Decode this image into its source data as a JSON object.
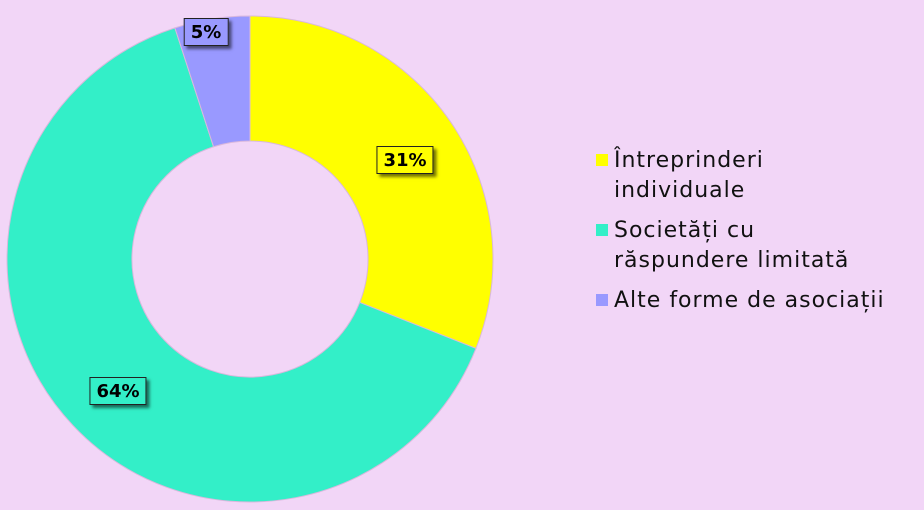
{
  "background_color": "#f2d6f7",
  "chart_data": {
    "type": "pie",
    "donut": true,
    "title": "",
    "legend_position": "right",
    "slices": [
      {
        "label": "Întreprinderi\nindividuale",
        "value": 31,
        "display": "31%",
        "color": "#ffff00"
      },
      {
        "label": "Societăți cu\nrăspundere limitată",
        "value": 64,
        "display": "64%",
        "color": "#33efc8"
      },
      {
        "label": "Alte forme de asociații",
        "value": 5,
        "display": "5%",
        "color": "#9999ff"
      }
    ]
  }
}
